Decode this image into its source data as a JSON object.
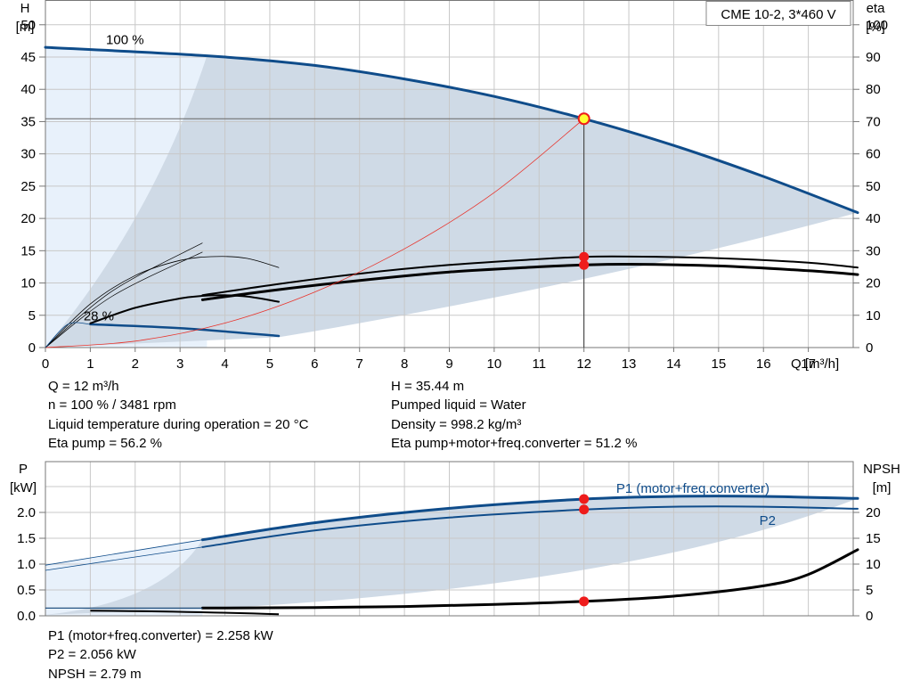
{
  "chart_data": [
    {
      "type": "line",
      "title": "CME 10-2, 3*460 V",
      "xlabel": "Q [m³/h]",
      "ylabel_left": [
        "H",
        "[m]"
      ],
      "ylabel_right": [
        "eta",
        "[%]"
      ],
      "xlim": [
        0,
        18
      ],
      "x_ticks": [
        0,
        1,
        2,
        3,
        4,
        5,
        6,
        7,
        8,
        9,
        10,
        11,
        12,
        13,
        14,
        15,
        16,
        17
      ],
      "ylim_left": [
        0,
        50
      ],
      "y_ticks_left": [
        0,
        5,
        10,
        15,
        20,
        25,
        30,
        35,
        40,
        45,
        50
      ],
      "ylim_right": [
        0,
        100
      ],
      "y_ticks_right": [
        0,
        10,
        20,
        30,
        40,
        50,
        60,
        70,
        80,
        90,
        100
      ],
      "grid": true,
      "speed_labels": [
        "100 %",
        "28 %"
      ],
      "series": [
        {
          "x": [
            0,
            3.6,
            6,
            8,
            10,
            12,
            14,
            16,
            18.1
          ],
          "y": [
            46.5,
            45.2,
            43.7,
            41.6,
            38.9,
            35.44,
            31.3,
            26.5,
            20.9
          ]
        },
        {
          "x": [
            1,
            3,
            5.2
          ],
          "y": [
            3.6,
            3.0,
            1.8
          ]
        },
        {
          "x": [
            3.5,
            5,
            7,
            9,
            11,
            12,
            13,
            15,
            17,
            18.1
          ],
          "y": [
            14.8,
            17.6,
            20.8,
            23.4,
            25.0,
            25.6,
            25.8,
            25.3,
            23.8,
            22.6
          ]
        },
        {
          "x": [
            3.5,
            5,
            7,
            9,
            11,
            12,
            13,
            15,
            17,
            18.1
          ],
          "y": [
            16.2,
            19.3,
            22.9,
            25.6,
            27.4,
            28.1,
            28.2,
            27.7,
            26.3,
            24.8
          ]
        },
        {
          "x": [
            1,
            2,
            3,
            3.5,
            4,
            4.5,
            5.2
          ],
          "y": [
            7.5,
            12.3,
            15.2,
            16.0,
            16.2,
            15.8,
            14.2
          ]
        },
        {
          "x": [
            0,
            1,
            2,
            3,
            3.8,
            4.5,
            5.2
          ],
          "y": [
            0,
            13.5,
            22.3,
            27.0,
            28.2,
            27.6,
            24.8
          ]
        },
        {
          "x": [
            0,
            2,
            4,
            6,
            8,
            10,
            12
          ],
          "y": [
            0,
            1.0,
            3.8,
            8.6,
            15.3,
            24.0,
            35.44
          ]
        }
      ],
      "duty_point": {
        "x": 12,
        "y": 35.44
      },
      "marked_values": [
        28.1,
        25.6
      ]
    },
    {
      "type": "line",
      "xlim": [
        0,
        18
      ],
      "x_ticks": [
        0,
        1,
        2,
        3,
        4,
        5,
        6,
        7,
        8,
        9,
        10,
        11,
        12,
        13,
        14,
        15,
        16,
        17
      ],
      "ylabel_left": [
        "P",
        "[kW]"
      ],
      "ylabel_right": [
        "NPSH",
        "[m]"
      ],
      "ylim_left": [
        0,
        2.5
      ],
      "y_ticks_left": [
        "0.0",
        "0.5",
        "1.0",
        "1.5",
        "2.0"
      ],
      "ylim_right": [
        0,
        25
      ],
      "y_ticks_right": [
        "0",
        "5",
        "10",
        "15",
        "20"
      ],
      "grid": true,
      "series": [
        {
          "name": "P1 (motor+freq.converter)",
          "x": [
            0,
            3.5,
            6,
            9,
            12,
            14,
            16,
            18.1
          ],
          "y": [
            0.98,
            1.47,
            1.8,
            2.08,
            2.258,
            2.31,
            2.31,
            2.27
          ]
        },
        {
          "name": "P2",
          "x": [
            0,
            3.5,
            6,
            9,
            12,
            14,
            16,
            18.1
          ],
          "y": [
            0.88,
            1.33,
            1.65,
            1.9,
            2.056,
            2.11,
            2.11,
            2.07
          ]
        },
        {
          "x": [
            0,
            1,
            3.5,
            6,
            8,
            10,
            12,
            14,
            16,
            17,
            18.1
          ],
          "y": [
            1.5,
            1.5,
            1.5,
            1.6,
            1.8,
            2.2,
            2.79,
            3.8,
            5.8,
            8.0,
            12.8
          ]
        }
      ],
      "markers": [
        2.258,
        2.056,
        2.79
      ]
    }
  ],
  "info_left": [
    "Q = 12 m³/h",
    "n = 100 % / 3481 rpm",
    "Liquid temperature during operation = 20 °C",
    "Eta pump = 56.2 %"
  ],
  "info_right": [
    "H = 35.44 m",
    "Pumped liquid = Water",
    "Density = 998.2 kg/m³",
    "Eta pump+motor+freq.converter = 51.2 %"
  ],
  "info_bottom": [
    "P1 (motor+freq.converter) = 2.258 kW",
    "P2 = 2.056 kW",
    "NPSH = 2.79 m"
  ],
  "colors": {
    "curve_blue": "#0f4c8a",
    "fill_light": "#e8f1fb",
    "fill_region": "#cfdae6",
    "grid": "#c8c8c8",
    "eta_curve": "#000000",
    "system_curve": "#e8342c",
    "marker": "#ee1c1c",
    "duty_marker_fill": "#ffff33"
  }
}
